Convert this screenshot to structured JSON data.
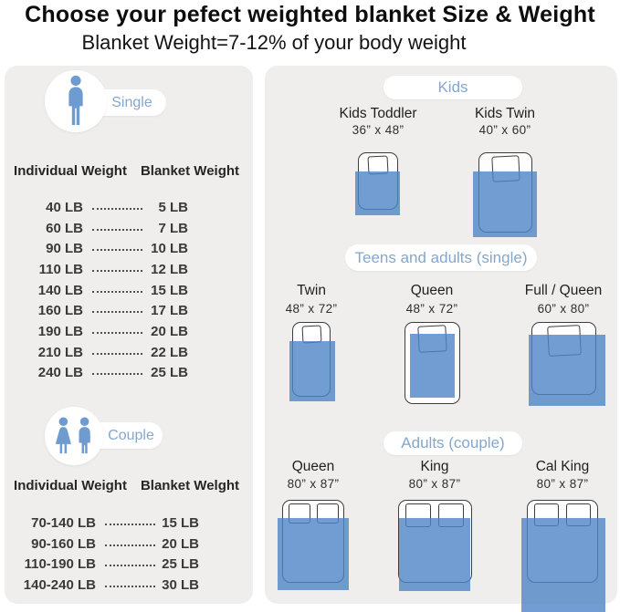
{
  "header": {
    "title": "Choose your pefect weighted blanket Size & Weight",
    "subtitle": "Blanket Weight=7-12% of your body weight"
  },
  "single_table": {
    "badge": "Single",
    "icon": "person-icon",
    "columns": [
      "Individual Weight",
      "Blanket Weight"
    ],
    "rows": [
      {
        "individual": "40 LB",
        "blanket": "5 LB"
      },
      {
        "individual": "60 LB",
        "blanket": "7 LB"
      },
      {
        "individual": "90 LB",
        "blanket": "10 LB"
      },
      {
        "individual": "110 LB",
        "blanket": "12 LB"
      },
      {
        "individual": "140 LB",
        "blanket": "15 LB"
      },
      {
        "individual": "160 LB",
        "blanket": "17 LB"
      },
      {
        "individual": "190 LB",
        "blanket": "20 LB"
      },
      {
        "individual": "210 LB",
        "blanket": "22 LB"
      },
      {
        "individual": "240 LB",
        "blanket": "25 LB"
      }
    ]
  },
  "couple_table": {
    "badge": "Couple",
    "icon": "couple-icon",
    "columns": [
      "Individual Weight",
      "Blanket Welght"
    ],
    "rows": [
      {
        "individual": "70-140 LB",
        "blanket": "15 LB"
      },
      {
        "individual": "90-160 LB",
        "blanket": "20 LB"
      },
      {
        "individual": "110-190 LB",
        "blanket": "25 LB"
      },
      {
        "individual": "140-240 LB",
        "blanket": "30 LB"
      }
    ]
  },
  "bed_sections": [
    {
      "title": "Kids",
      "beds": [
        {
          "name": "Kids Toddler",
          "size": "36” x 48”"
        },
        {
          "name": "Kids Twin",
          "size": "40” x 60”"
        }
      ]
    },
    {
      "title": "Teens and adults (single)",
      "beds": [
        {
          "name": "Twin",
          "size": "48” x 72”"
        },
        {
          "name": "Queen",
          "size": "48” x 72”"
        },
        {
          "name": "Full / Queen",
          "size": "60” x 80”"
        }
      ]
    },
    {
      "title": "Adults (couple)",
      "beds": [
        {
          "name": "Queen",
          "size": "80” x 87”"
        },
        {
          "name": "King",
          "size": "80” x 87”"
        },
        {
          "name": "Cal King",
          "size": "80” x 87”"
        }
      ]
    }
  ],
  "colors": {
    "accent_text": "#84a7cb",
    "icon_blue": "#6f9cd0",
    "blanket_blue": "rgba(77,133,199,0.8)",
    "panel_bg": "#efeeec"
  }
}
